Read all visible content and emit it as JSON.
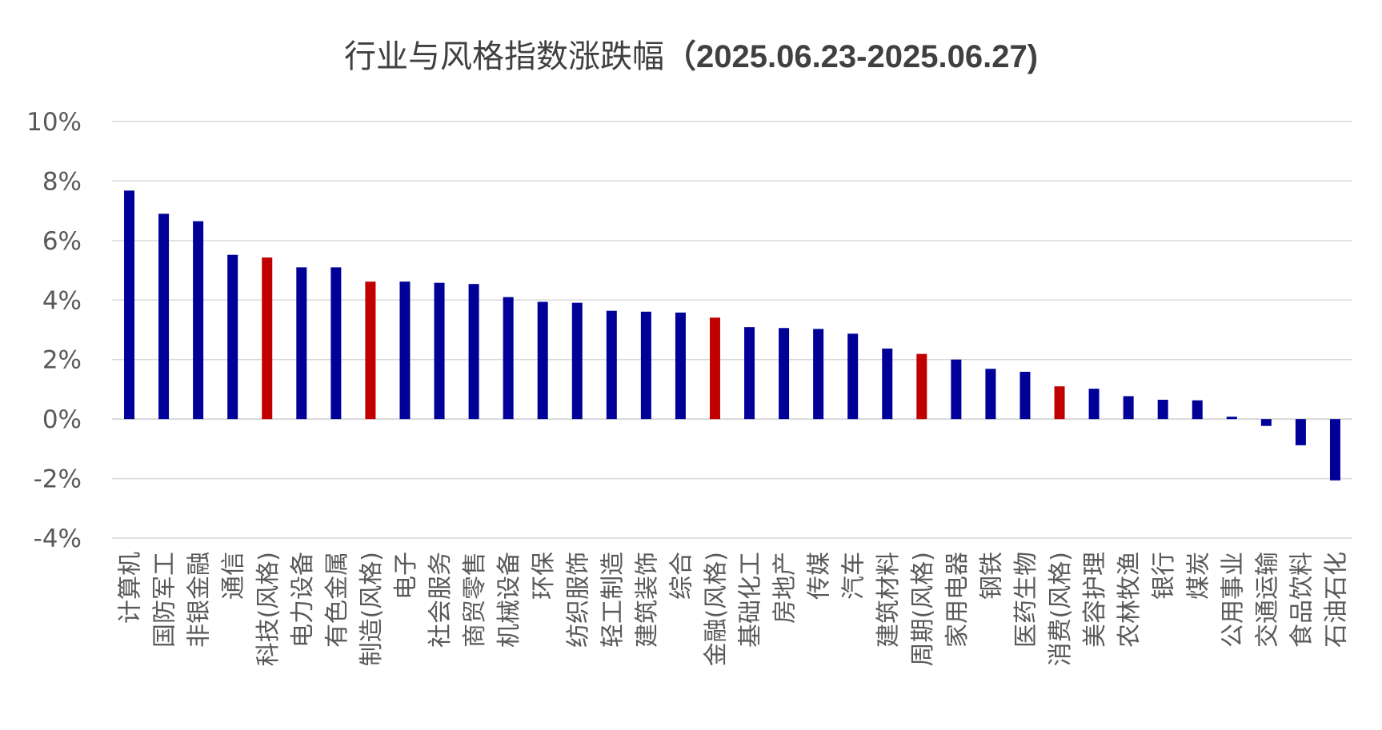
{
  "chart_data": {
    "type": "bar",
    "title": "行业与风格指数涨跌幅",
    "title_date": "（2025.06.23-2025.06.27)",
    "xlabel": "",
    "ylabel": "",
    "ylim": [
      -4,
      10
    ],
    "yticks": [
      10,
      8,
      6,
      4,
      2,
      0,
      -2,
      -4
    ],
    "ytick_labels": [
      "10%",
      "8%",
      "6%",
      "4%",
      "2%",
      "0%",
      "-2%",
      "-4%"
    ],
    "grid": true,
    "legend": "none",
    "categories": [
      "计算机",
      "国防军工",
      "非银金融",
      "通信",
      "科技(风格)",
      "电力设备",
      "有色金属",
      "制造(风格)",
      "电子",
      "社会服务",
      "商贸零售",
      "机械设备",
      "环保",
      "纺织服饰",
      "轻工制造",
      "建筑装饰",
      "综合",
      "金融(风格)",
      "基础化工",
      "房地产",
      "传媒",
      "汽车",
      "建筑材料",
      "周期(风格)",
      "家用电器",
      "钢铁",
      "医药生物",
      "消费(风格)",
      "美容护理",
      "农林牧渔",
      "银行",
      "煤炭",
      "公用事业",
      "交通运输",
      "食品饮料",
      "石油石化"
    ],
    "values": [
      7.68,
      6.9,
      6.65,
      5.52,
      5.43,
      5.1,
      5.1,
      4.62,
      4.62,
      4.58,
      4.54,
      4.1,
      3.94,
      3.91,
      3.64,
      3.61,
      3.58,
      3.41,
      3.09,
      3.06,
      3.03,
      2.87,
      2.37,
      2.19,
      2.0,
      1.69,
      1.59,
      1.1,
      1.02,
      0.77,
      0.65,
      0.63,
      0.08,
      -0.23,
      -0.88,
      -2.06
    ],
    "highlight": [
      false,
      false,
      false,
      false,
      true,
      false,
      false,
      true,
      false,
      false,
      false,
      false,
      false,
      false,
      false,
      false,
      false,
      true,
      false,
      false,
      false,
      false,
      false,
      true,
      false,
      false,
      false,
      true,
      false,
      false,
      false,
      false,
      false,
      false,
      false,
      false
    ],
    "colors": {
      "industry": "#000099",
      "style": "#C00000",
      "grid": "#D9D9D9",
      "text": "#595959",
      "title": "#404040"
    }
  }
}
